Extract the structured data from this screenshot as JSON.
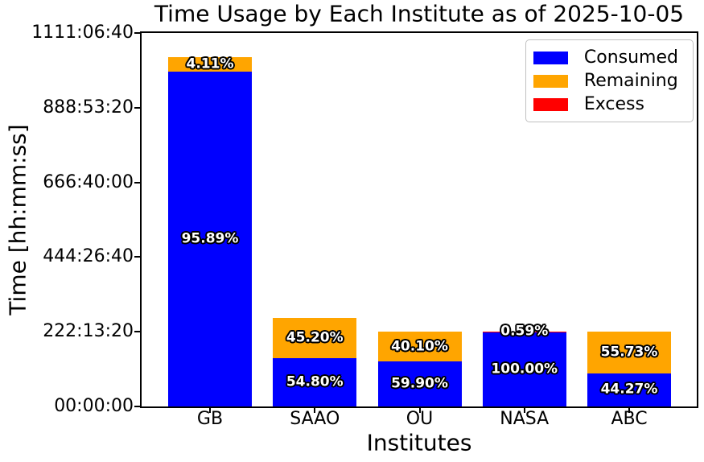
{
  "chart_data": {
    "type": "bar",
    "stacked": true,
    "grid": false,
    "title": "Time Usage by Each Institute as of 2025-10-05",
    "xlabel": "Institutes",
    "ylabel": "Time [hh:mm:ss]",
    "categories": [
      "GB",
      "SAAO",
      "OU",
      "NASA",
      "ABC"
    ],
    "y_axis": {
      "unit": "seconds shown as hh:mm:ss",
      "min": 0,
      "max": 4000000,
      "ticks": [
        {
          "seconds": 0,
          "label": "00:00:00"
        },
        {
          "seconds": 800000,
          "label": "222:13:20"
        },
        {
          "seconds": 1600000,
          "label": "444:26:40"
        },
        {
          "seconds": 2400000,
          "label": "666:40:00"
        },
        {
          "seconds": 3200000,
          "label": "888:53:20"
        },
        {
          "seconds": 4000000,
          "label": "1111:06:40"
        }
      ]
    },
    "series": [
      {
        "name": "Consumed",
        "color": "#0000ff",
        "values_seconds": [
          3587250,
          519500,
          479200,
          800000,
          354160
        ],
        "pct_labels": [
          "95.89%",
          "54.80%",
          "59.90%",
          "100.00%",
          "44.27%"
        ]
      },
      {
        "name": "Remaining",
        "color": "#ffa500",
        "values_seconds": [
          153750,
          428500,
          320800,
          0,
          445840
        ],
        "pct_labels": [
          "4.11%",
          "45.20%",
          "40.10%",
          "",
          "55.73%"
        ]
      },
      {
        "name": "Excess",
        "color": "#ff0000",
        "values_seconds": [
          0,
          0,
          0,
          4720,
          0
        ],
        "pct_labels": [
          "",
          "",
          "",
          "0.59%",
          ""
        ]
      }
    ],
    "legend": {
      "position": "upper right",
      "entries": [
        {
          "label": "Consumed",
          "color": "#0000ff"
        },
        {
          "label": "Remaining",
          "color": "#ffa500"
        },
        {
          "label": "Excess",
          "color": "#ff0000"
        }
      ]
    },
    "bar_label_style": {
      "color": "#ffffff",
      "outline": "#000000",
      "bold": true
    }
  }
}
